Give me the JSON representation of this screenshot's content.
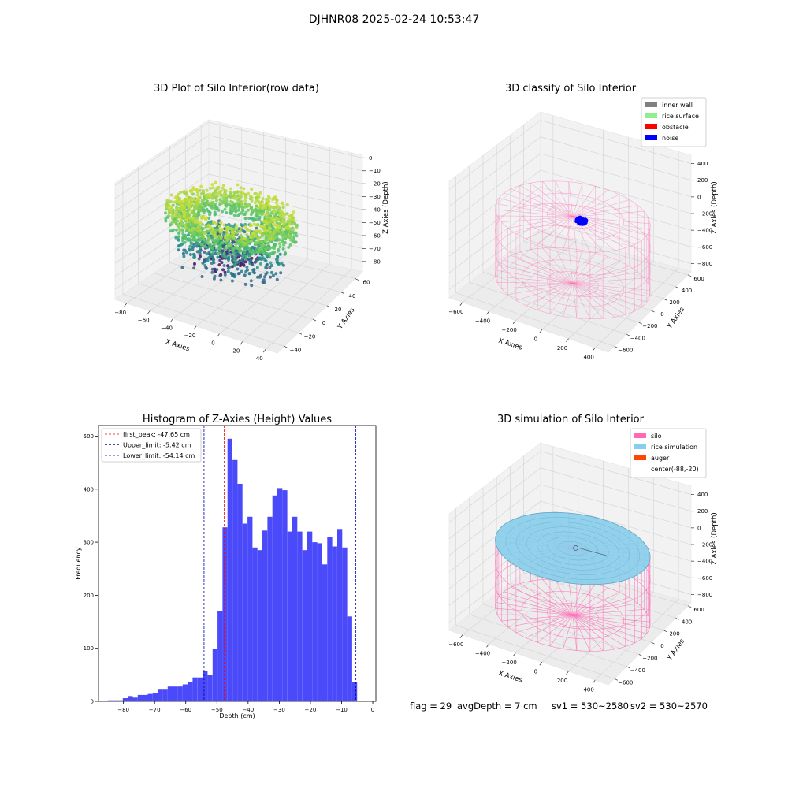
{
  "figure": {
    "suptitle": "DJHNR08 2025-02-24 10:53:47"
  },
  "status": {
    "flag": "flag = 29",
    "avg_depth": "avgDepth = 7 cm",
    "sv1": "sv1 = 530~2580",
    "sv2": "sv2 = 530~2570"
  },
  "chart_data": [
    {
      "type": "scatter",
      "subtype": "3d",
      "title": "3D Plot of Silo Interior(row data)",
      "xlabel": "X Axies",
      "ylabel": "Y Axies",
      "zlabel": "Z Axies (Depth)",
      "x_ticks": [
        -80,
        -60,
        -40,
        -20,
        0,
        20,
        40
      ],
      "y_ticks": [
        -40,
        -20,
        0,
        20,
        40,
        60
      ],
      "z_ticks": [
        -80,
        -70,
        -60,
        -50,
        -40,
        -30,
        -20,
        -10,
        0
      ],
      "xlim": [
        -90,
        50
      ],
      "ylim": [
        -50,
        70
      ],
      "zlim": [
        -88,
        2
      ],
      "colormap": "viridis",
      "grid": true
    },
    {
      "type": "scatter",
      "subtype": "3d",
      "title": "3D classify of Silo Interior",
      "zlabel": "Z Axies (Depth)",
      "xlabel": "X Axies",
      "ylabel": "Y Axies",
      "x_ticks": [
        -600,
        -400,
        -200,
        0,
        200,
        400
      ],
      "y_ticks": [
        -600,
        -400,
        -200,
        0,
        200,
        400,
        600
      ],
      "z_ticks": [
        -800,
        -600,
        -400,
        -200,
        0,
        200,
        400
      ],
      "xlim": [
        -700,
        500
      ],
      "ylim": [
        -700,
        650
      ],
      "zlim": [
        -900,
        500
      ],
      "legend": [
        {
          "label": "inner wall",
          "color": "#808080"
        },
        {
          "label": "rice surface",
          "color": "#90ee90"
        },
        {
          "label": "obstacle",
          "color": "#ff0000"
        },
        {
          "label": "noise",
          "color": "#0000ff"
        }
      ],
      "legend_position": "top-right",
      "grid": true
    },
    {
      "type": "bar",
      "subtype": "histogram",
      "title": "Histogram of Z-Axies (Height) Values",
      "xlabel": "Depth (cm)",
      "ylabel": "Frequency",
      "xlim": [
        -88,
        1
      ],
      "ylim": [
        0,
        520
      ],
      "x_ticks": [
        -80,
        -70,
        -60,
        -50,
        -40,
        -30,
        -20,
        -10,
        0
      ],
      "y_ticks": [
        0,
        100,
        200,
        300,
        400,
        500
      ],
      "bin_start": -85,
      "bin_width": 1.6,
      "values": [
        2,
        2,
        2,
        6,
        10,
        7,
        12,
        12,
        14,
        16,
        22,
        22,
        28,
        28,
        28,
        32,
        36,
        45,
        45,
        57,
        50,
        98,
        170,
        328,
        495,
        455,
        410,
        335,
        348,
        290,
        285,
        322,
        348,
        388,
        402,
        398,
        320,
        348,
        320,
        285,
        320,
        300,
        298,
        258,
        310,
        292,
        325,
        290,
        160,
        36
      ],
      "bar_color": "#4a4afa",
      "lines": [
        {
          "label": "first_peak: -47.65 cm",
          "x": -47.65,
          "color": "#ff0000"
        },
        {
          "label": "Upper_limit: -5.42 cm",
          "x": -5.42,
          "color": "#0000aa"
        },
        {
          "label": "Lower_limit: -54.14 cm",
          "x": -54.14,
          "color": "#0000aa"
        }
      ],
      "legend_position": "top-left"
    },
    {
      "type": "scatter",
      "subtype": "3d",
      "title": "3D simulation of Silo Interior",
      "zlabel": "Z Axies (Depth)",
      "xlabel": "X Axies",
      "ylabel": "Y Axies",
      "x_ticks": [
        -600,
        -400,
        -200,
        0,
        200,
        400
      ],
      "y_ticks": [
        -600,
        -400,
        -200,
        0,
        200,
        400,
        600
      ],
      "z_ticks": [
        -800,
        -600,
        -400,
        -200,
        0,
        200,
        400
      ],
      "xlim": [
        -700,
        500
      ],
      "ylim": [
        -700,
        650
      ],
      "zlim": [
        -900,
        500
      ],
      "legend": [
        {
          "label": "silo",
          "color": "#ff69b4"
        },
        {
          "label": "rice simulation",
          "color": "#87ceeb"
        },
        {
          "label": "auger",
          "color": "#ff4500"
        },
        {
          "label": "center(-88,-20)",
          "color": ""
        }
      ],
      "legend_position": "top-right",
      "grid": true
    }
  ]
}
